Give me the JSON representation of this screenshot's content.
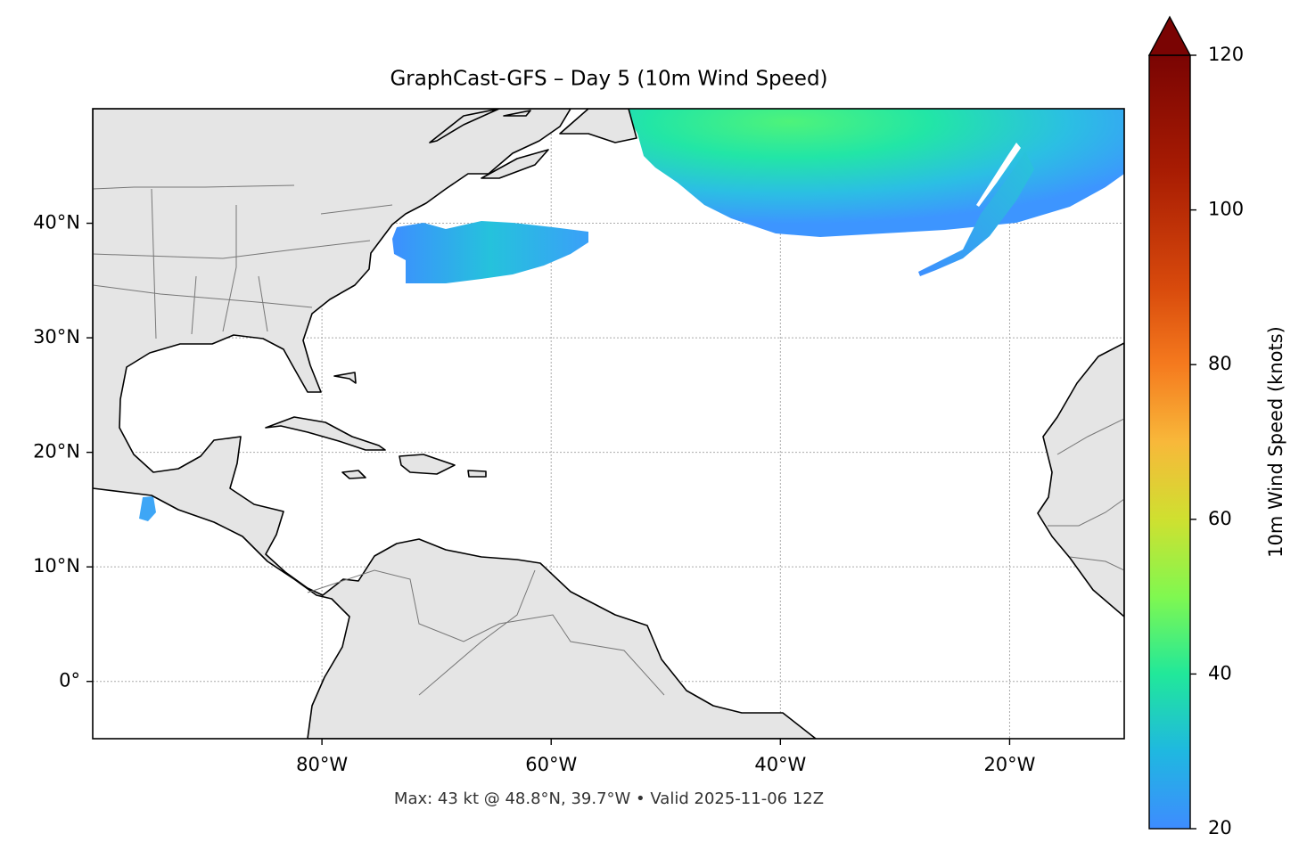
{
  "map": {
    "title": "GraphCast-GFS – Day 5 (10m Wind Speed)",
    "footer": "Max: 43 kt @ 48.8°N, 39.7°W • Valid 2025-11-06 12Z",
    "xaxis": {
      "lim": [
        -100,
        -10
      ],
      "ticks": [
        {
          "value": -80,
          "label": "80°W"
        },
        {
          "value": -60,
          "label": "60°W"
        },
        {
          "value": -40,
          "label": "40°W"
        },
        {
          "value": -20,
          "label": "20°W"
        }
      ]
    },
    "yaxis": {
      "lim": [
        -5,
        50
      ],
      "ticks": [
        {
          "value": 0,
          "label": "0°"
        },
        {
          "value": 10,
          "label": "10°N"
        },
        {
          "value": 20,
          "label": "20°N"
        },
        {
          "value": 30,
          "label": "30°N"
        },
        {
          "value": 40,
          "label": "40°N"
        }
      ]
    },
    "grid": true,
    "colorbar": {
      "label": "10m Wind Speed (knots)",
      "lim": [
        20,
        120
      ],
      "ticks": [
        20,
        40,
        60,
        80,
        100,
        120
      ]
    }
  }
}
